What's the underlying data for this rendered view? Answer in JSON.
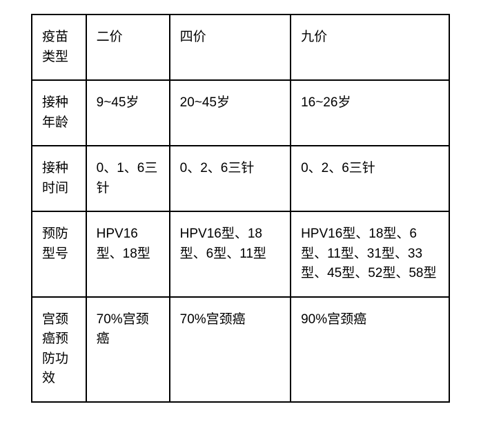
{
  "table": {
    "border_color": "#000000",
    "background_color": "#ffffff",
    "text_color": "#000000",
    "font_size": 19,
    "columns": [
      "疫苗类型",
      "二价",
      "四价",
      "九价"
    ],
    "column_widths": [
      "13%",
      "20%",
      "29%",
      "38%"
    ],
    "rows": [
      {
        "header": "接种年龄",
        "cells": [
          "9~45岁",
          "20~45岁",
          "16~26岁"
        ]
      },
      {
        "header": "接种时间",
        "cells": [
          "0、1、6三针",
          "0、2、6三针",
          "0、2、6三针"
        ]
      },
      {
        "header": "预防型号",
        "cells": [
          "HPV16型、18型",
          "HPV16型、18型、6型、11型",
          "HPV16型、18型、6型、11型、31型、33型、45型、52型、58型"
        ]
      },
      {
        "header": "宫颈癌预防功效",
        "cells": [
          "70%宫颈癌",
          "70%宫颈癌",
          "90%宫颈癌"
        ]
      }
    ]
  }
}
